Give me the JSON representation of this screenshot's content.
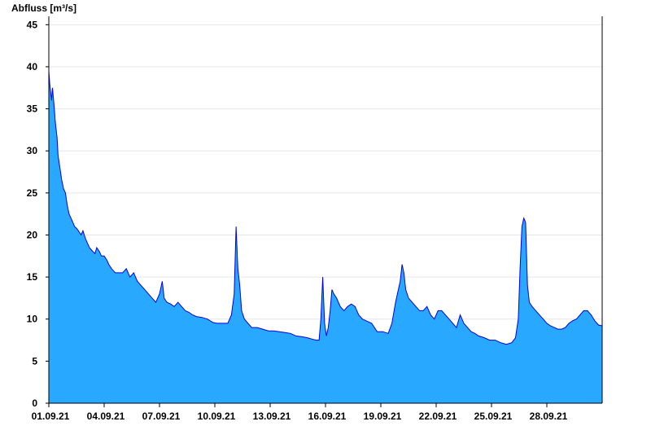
{
  "chart_data": {
    "type": "area",
    "title": "",
    "ylabel": "Abfluss [m³/s]",
    "xlabel": "",
    "ylim": [
      0,
      46
    ],
    "yticks": [
      0,
      5,
      10,
      15,
      20,
      25,
      30,
      35,
      40,
      45
    ],
    "xlim": [
      1.0,
      31.0
    ],
    "xticks": [
      {
        "day": 1,
        "label": "01.09.21"
      },
      {
        "day": 4,
        "label": "04.09.21"
      },
      {
        "day": 7,
        "label": "07.09.21"
      },
      {
        "day": 10,
        "label": "10.09.21"
      },
      {
        "day": 13,
        "label": "13.09.21"
      },
      {
        "day": 16,
        "label": "16.09.21"
      },
      {
        "day": 19,
        "label": "19.09.21"
      },
      {
        "day": 22,
        "label": "22.09.21"
      },
      {
        "day": 25,
        "label": "25.09.21"
      },
      {
        "day": 28,
        "label": "28.09.21"
      }
    ],
    "grid": true,
    "fill_color": "#29a8ff",
    "line_color": "#0000e6",
    "series": [
      {
        "x": [
          1.0,
          1.05,
          1.15,
          1.2,
          1.3,
          1.35,
          1.45,
          1.5,
          1.6,
          1.7,
          1.8,
          1.9,
          2.0,
          2.1,
          2.2,
          2.3,
          2.4,
          2.5,
          2.6,
          2.75,
          2.85,
          3.0,
          3.1,
          3.2,
          3.4,
          3.5,
          3.6,
          3.75,
          3.85,
          4.0,
          4.15,
          4.25,
          4.4,
          4.6,
          4.8,
          5.0,
          5.2,
          5.4,
          5.6,
          5.8,
          6.0,
          6.2,
          6.4,
          6.6,
          6.8,
          7.0,
          7.15,
          7.25,
          7.4,
          7.6,
          7.8,
          8.0,
          8.2,
          8.4,
          8.6,
          8.8,
          9.0,
          9.3,
          9.6,
          9.9,
          10.1,
          10.3,
          10.5,
          10.7,
          10.9,
          11.05,
          11.15,
          11.25,
          11.35,
          11.45,
          11.6,
          11.8,
          12.0,
          12.3,
          12.6,
          12.9,
          13.2,
          13.5,
          13.8,
          14.1,
          14.4,
          14.7,
          15.0,
          15.3,
          15.5,
          15.65,
          15.75,
          15.85,
          15.95,
          16.05,
          16.15,
          16.25,
          16.35,
          16.45,
          16.6,
          16.8,
          17.0,
          17.2,
          17.4,
          17.6,
          17.8,
          18.0,
          18.2,
          18.5,
          18.8,
          19.1,
          19.4,
          19.6,
          19.8,
          19.95,
          20.05,
          20.15,
          20.25,
          20.35,
          20.5,
          20.7,
          20.9,
          21.1,
          21.3,
          21.5,
          21.7,
          21.9,
          22.1,
          22.3,
          22.5,
          22.7,
          22.9,
          23.1,
          23.3,
          23.5,
          23.7,
          23.9,
          24.1,
          24.3,
          24.6,
          24.9,
          25.2,
          25.5,
          25.8,
          26.1,
          26.3,
          26.45,
          26.55,
          26.65,
          26.75,
          26.85,
          26.95,
          27.05,
          27.2,
          27.4,
          27.6,
          27.8,
          28.0,
          28.2,
          28.4,
          28.6,
          28.8,
          29.0,
          29.2,
          29.4,
          29.6,
          29.8,
          30.0,
          30.2,
          30.4,
          30.6,
          30.8,
          31.0
        ],
        "y": [
          39.5,
          38.0,
          36.0,
          37.5,
          35.0,
          33.5,
          31.5,
          29.5,
          28.0,
          26.5,
          25.5,
          25.0,
          23.5,
          22.5,
          22.0,
          21.5,
          21.0,
          20.8,
          20.5,
          20.0,
          20.5,
          19.5,
          19.0,
          18.5,
          18.0,
          17.8,
          18.5,
          18.0,
          17.5,
          17.5,
          17.0,
          16.5,
          16.0,
          15.5,
          15.5,
          15.5,
          16.0,
          15.0,
          15.5,
          14.5,
          14.0,
          13.5,
          13.0,
          12.5,
          12.0,
          13.0,
          14.5,
          12.5,
          12.0,
          11.8,
          11.5,
          12.0,
          11.5,
          11.0,
          10.8,
          10.5,
          10.3,
          10.2,
          10.0,
          9.6,
          9.5,
          9.5,
          9.5,
          9.5,
          10.5,
          13.0,
          21.0,
          16.0,
          14.0,
          11.0,
          10.0,
          9.5,
          9.0,
          9.0,
          8.8,
          8.6,
          8.6,
          8.5,
          8.4,
          8.3,
          8.0,
          7.9,
          7.8,
          7.6,
          7.5,
          7.5,
          10.0,
          15.0,
          9.5,
          8.0,
          9.0,
          11.0,
          13.5,
          13.0,
          12.5,
          11.5,
          11.0,
          11.5,
          11.8,
          11.5,
          10.5,
          10.0,
          9.8,
          9.5,
          8.5,
          8.5,
          8.3,
          9.5,
          12.0,
          13.5,
          14.5,
          16.5,
          15.5,
          13.5,
          12.5,
          12.0,
          11.5,
          11.0,
          11.0,
          11.5,
          10.5,
          10.0,
          11.0,
          11.0,
          10.5,
          10.0,
          9.5,
          9.0,
          10.5,
          9.5,
          9.0,
          8.5,
          8.3,
          8.0,
          7.8,
          7.5,
          7.5,
          7.2,
          7.0,
          7.2,
          7.8,
          10.0,
          16.0,
          21.0,
          22.0,
          21.5,
          14.0,
          12.0,
          11.5,
          11.0,
          10.5,
          10.0,
          9.5,
          9.2,
          9.0,
          8.8,
          8.8,
          9.0,
          9.5,
          9.8,
          10.0,
          10.5,
          11.0,
          11.0,
          10.5,
          9.8,
          9.3,
          9.2
        ]
      }
    ]
  }
}
